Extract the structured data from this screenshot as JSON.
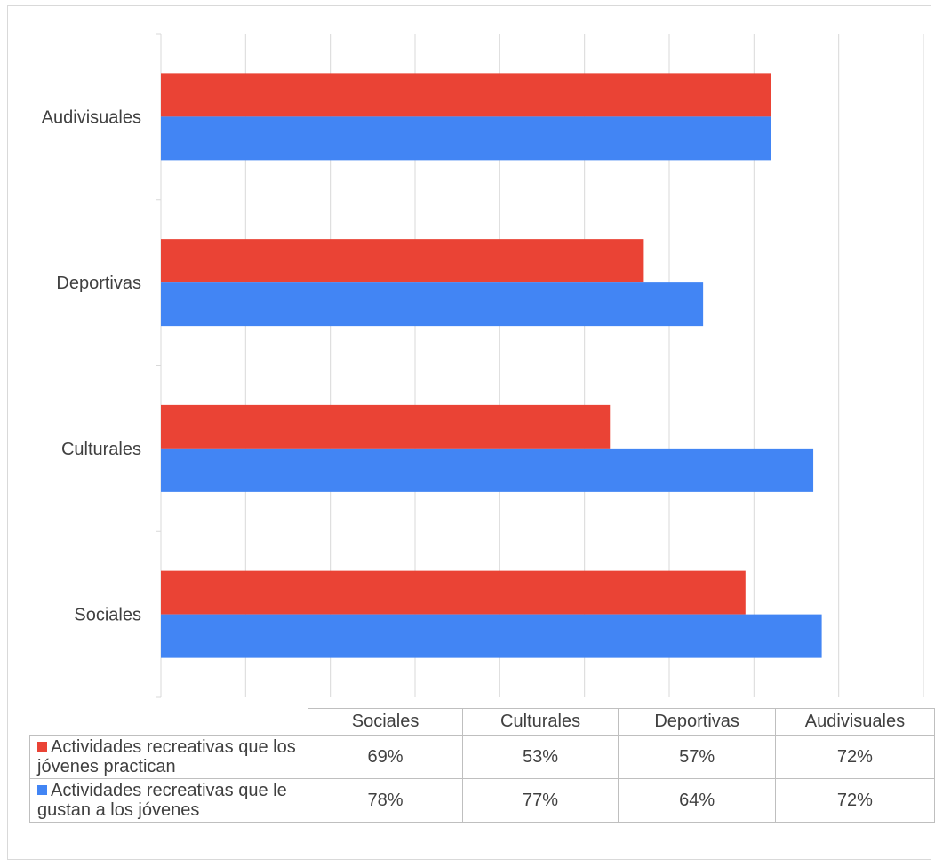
{
  "chart_data": {
    "type": "bar",
    "orientation": "horizontal",
    "categories": [
      "Sociales",
      "Culturales",
      "Deportivas",
      "Audivisuales"
    ],
    "series": [
      {
        "name": "Actividades recreativas que los jóvenes practican",
        "values": [
          69,
          53,
          57,
          72
        ],
        "labels": [
          "69%",
          "53%",
          "57%",
          "72%"
        ],
        "color": "#ea4335"
      },
      {
        "name": "Actividades recreativas que le gustan a los jóvenes",
        "values": [
          78,
          77,
          64,
          72
        ],
        "labels": [
          "78%",
          "77%",
          "64%",
          "72%"
        ],
        "color": "#4285f4"
      }
    ],
    "xlim": [
      0,
      90
    ],
    "grid": true,
    "legend": "data-table"
  }
}
